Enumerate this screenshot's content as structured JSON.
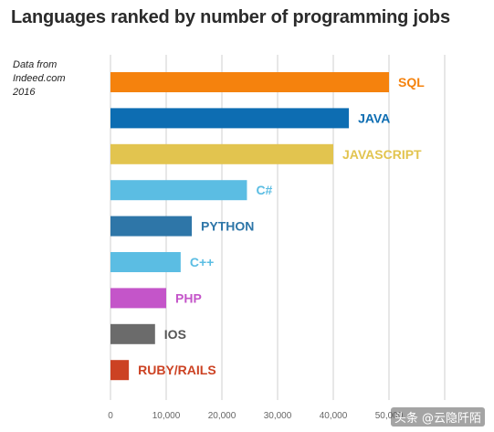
{
  "chart_data": {
    "type": "bar",
    "orientation": "horizontal",
    "title": "Languages ranked by number of programming jobs",
    "source_note": "Data from\nIndeed.com\n2016",
    "categories": [
      "SQL",
      "JAVA",
      "JAVASCRIPT",
      "C#",
      "PYTHON",
      "C++",
      "PHP",
      "IOS",
      "RUBY/RAILS"
    ],
    "values": [
      50000,
      42800,
      40000,
      24500,
      14600,
      12600,
      10000,
      8000,
      3300
    ],
    "colors": [
      "#f5820d",
      "#0d6db2",
      "#e2c44f",
      "#5bbde3",
      "#2e76a8",
      "#5bbde3",
      "#c455c9",
      "#6b6b6b",
      "#cc4223"
    ],
    "label_colors": [
      "#f5820d",
      "#0d6db2",
      "#e2c44f",
      "#5bbde3",
      "#2e76a8",
      "#5bbde3",
      "#c455c9",
      "#555555",
      "#cc4223"
    ],
    "xlim": [
      0,
      60000
    ],
    "xticks": [
      0,
      10000,
      20000,
      30000,
      40000,
      50000,
      60000
    ],
    "xtick_labels": [
      "0",
      "10,000",
      "20,000",
      "30,000",
      "40,000",
      "50,000",
      ""
    ],
    "grid": true
  },
  "watermark": "头条 @云隐阡陌"
}
